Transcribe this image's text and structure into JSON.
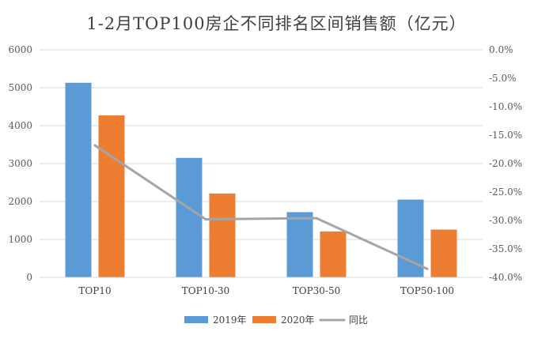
{
  "chart_data": {
    "type": "bar",
    "title": "1-2月TOP100房企不同排名区间销售额（亿元）",
    "categories": [
      "TOP10",
      "TOP10-30",
      "TOP30-50",
      "TOP50-100"
    ],
    "series": [
      {
        "name": "2019年",
        "type": "bar",
        "axis": "left",
        "color": "#5B9BD5",
        "values": [
          5130,
          3150,
          1720,
          2050
        ]
      },
      {
        "name": "2020年",
        "type": "bar",
        "axis": "left",
        "color": "#ED7D31",
        "values": [
          4270,
          2210,
          1210,
          1260
        ]
      },
      {
        "name": "同比",
        "type": "line",
        "axis": "right",
        "color": "#A5A5A5",
        "values": [
          -16.8,
          -29.8,
          -29.6,
          -38.5
        ]
      }
    ],
    "ylim": [
      0,
      6000
    ],
    "yticks": [
      0,
      1000,
      2000,
      3000,
      4000,
      5000,
      6000
    ],
    "y2lim": [
      -40,
      0
    ],
    "y2ticks": [
      -40,
      -35,
      -30,
      -25,
      -20,
      -15,
      -10,
      -5,
      0
    ],
    "y2_tick_labels": [
      "-40.0%",
      "-35.0%",
      "-30.0%",
      "-25.0%",
      "-20.0%",
      "-15.0%",
      "-10.0%",
      "-5.0%",
      "0.0%"
    ],
    "grid": true,
    "legend_position": "bottom"
  }
}
